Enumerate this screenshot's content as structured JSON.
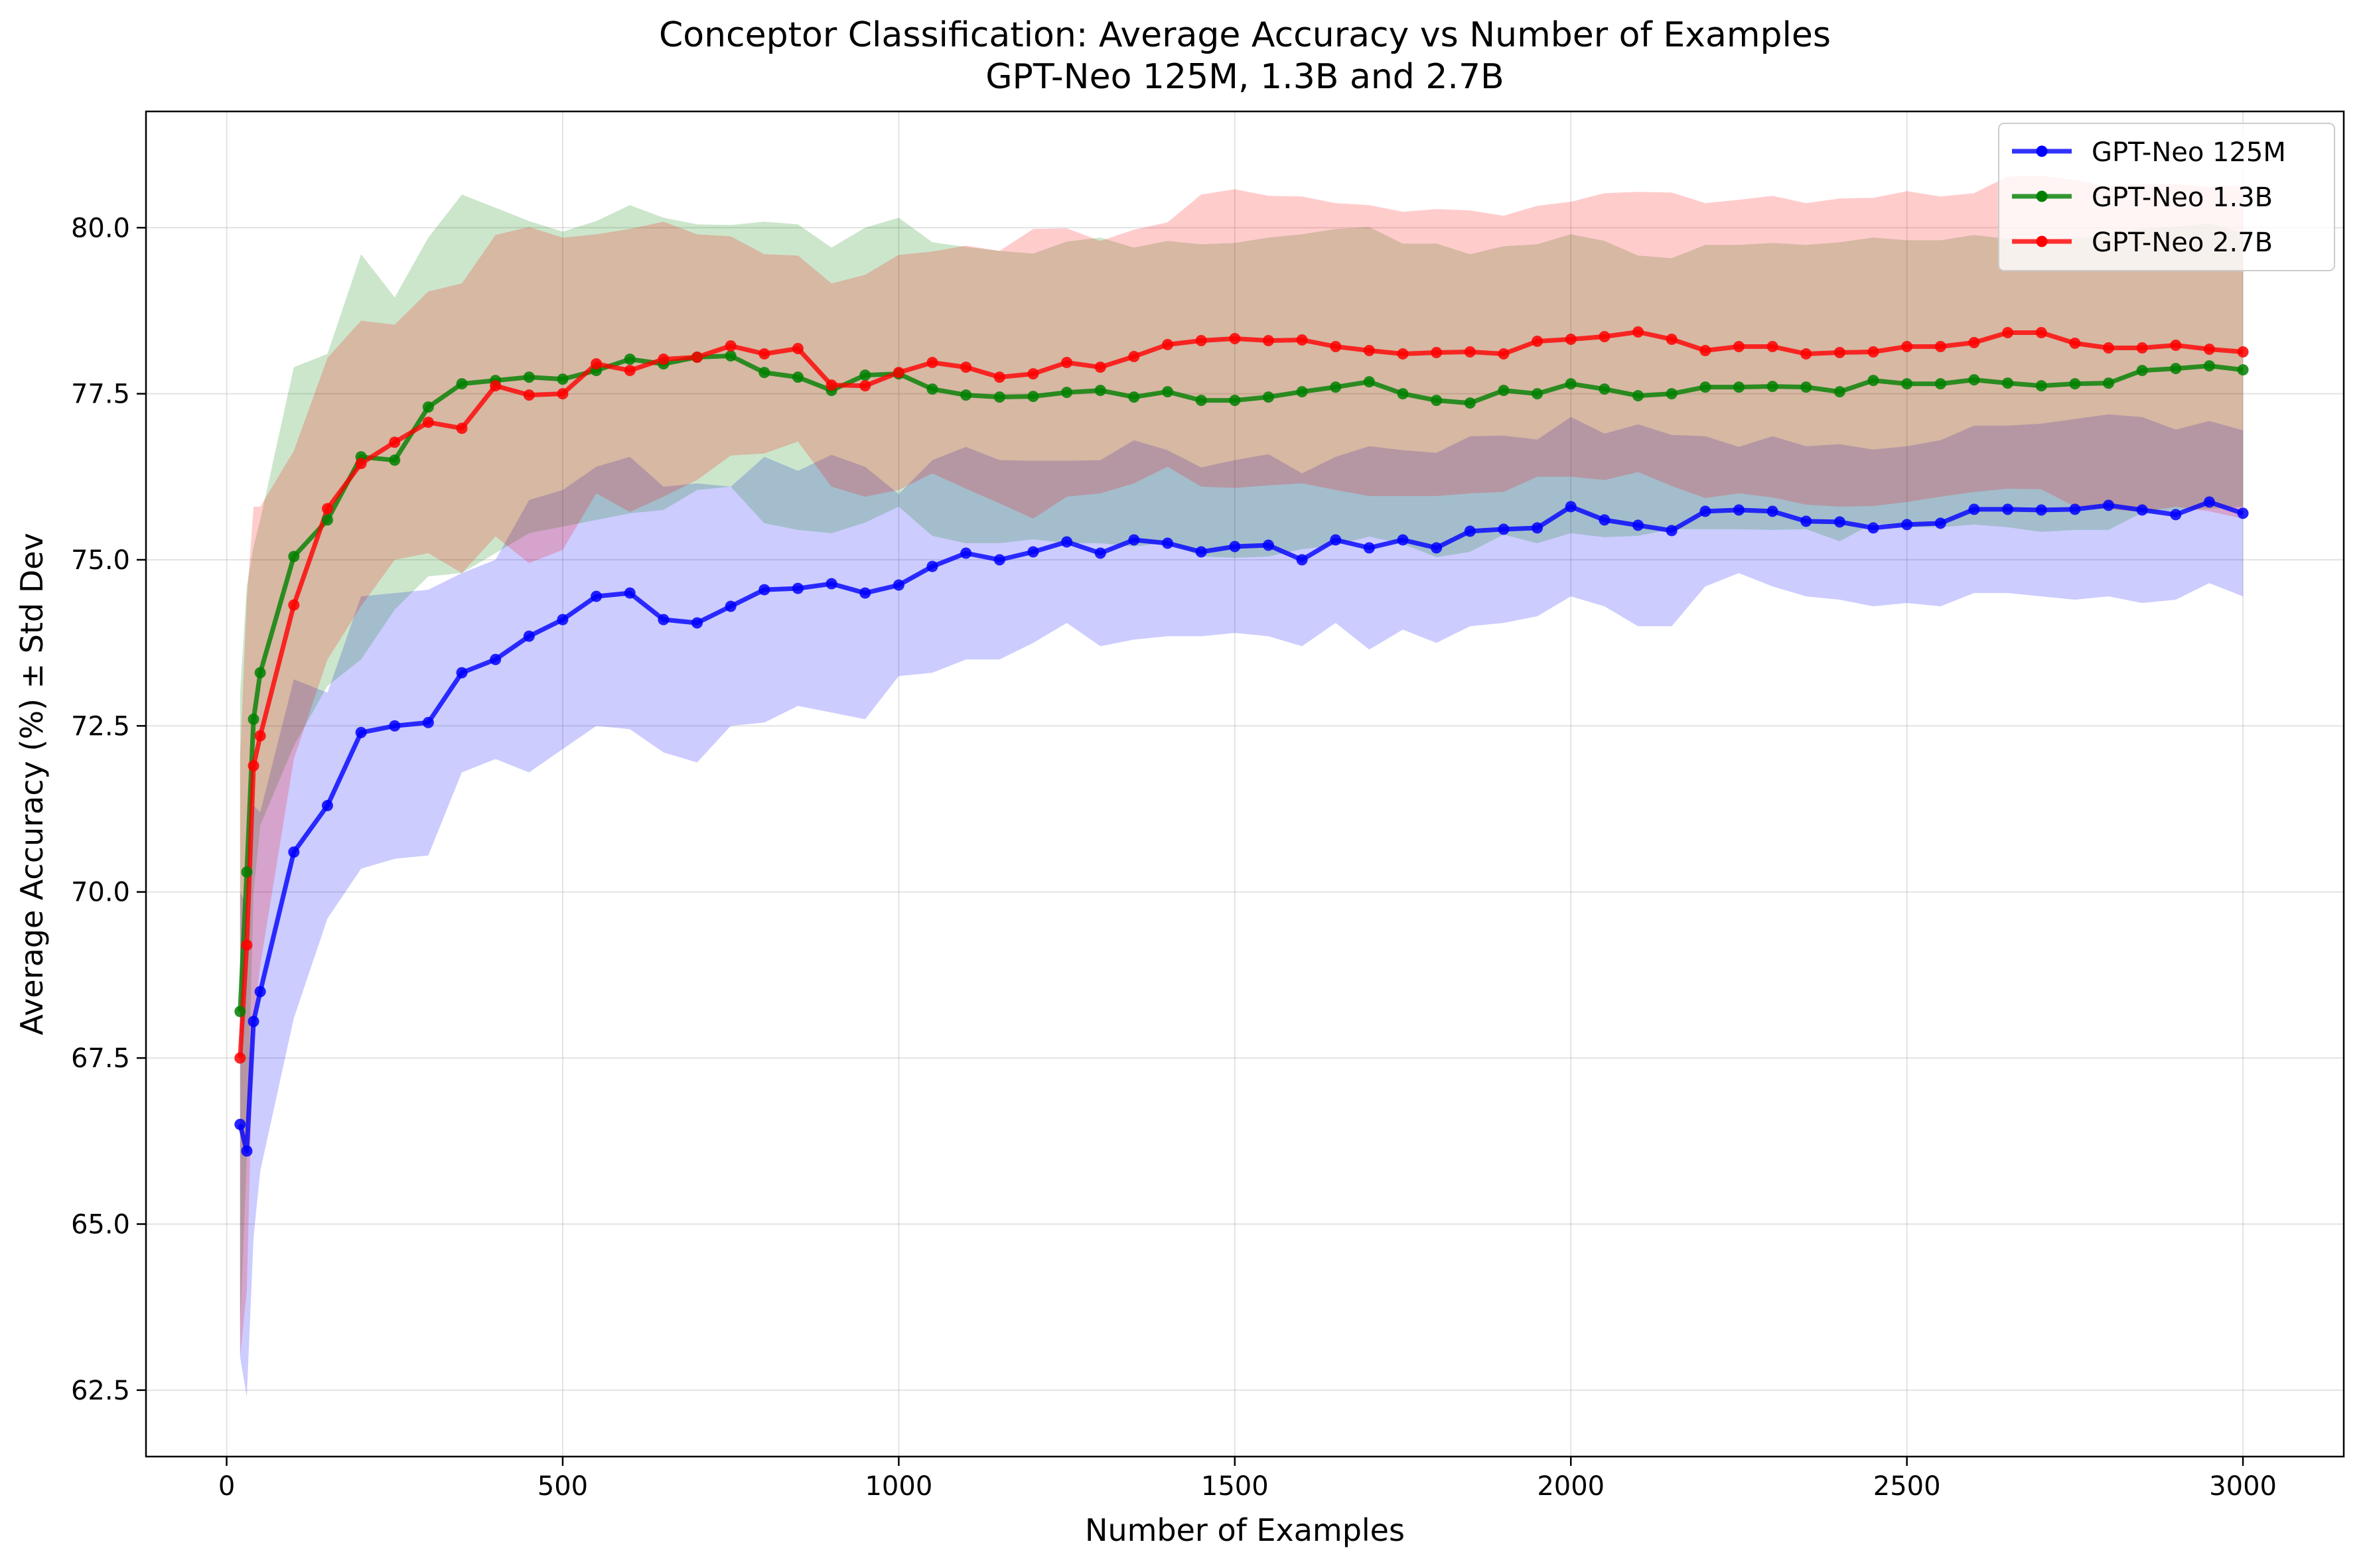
{
  "chart_data": {
    "type": "line",
    "title": "Conceptor Classification: Average Accuracy vs Number of Examples",
    "subtitle": "GPT-Neo 125M, 1.3B and 2.7B",
    "xlabel": "Number of Examples",
    "ylabel": "Average Accuracy (%) ± Std Dev",
    "xlim": [
      -120,
      3150
    ],
    "ylim": [
      61.5,
      81.75
    ],
    "xticks": [
      0,
      500,
      1000,
      1500,
      2000,
      2500,
      3000
    ],
    "xtick_labels": [
      "0",
      "500",
      "1000",
      "1500",
      "2000",
      "2500",
      "3000"
    ],
    "yticks": [
      62.5,
      65.0,
      67.5,
      70.0,
      72.5,
      75.0,
      77.5,
      80.0
    ],
    "ytick_labels": [
      "62.5",
      "65.0",
      "67.5",
      "70.0",
      "72.5",
      "75.0",
      "77.5",
      "80.0"
    ],
    "grid": true,
    "legend_position": "top-right",
    "x": [
      20,
      30,
      40,
      50,
      100,
      150,
      200,
      250,
      300,
      350,
      400,
      450,
      500,
      550,
      600,
      650,
      700,
      750,
      800,
      850,
      900,
      950,
      1000,
      1050,
      1100,
      1150,
      1200,
      1250,
      1300,
      1350,
      1400,
      1450,
      1500,
      1550,
      1600,
      1650,
      1700,
      1750,
      1800,
      1850,
      1900,
      1950,
      2000,
      2050,
      2100,
      2150,
      2200,
      2250,
      2300,
      2350,
      2400,
      2450,
      2500,
      2550,
      2600,
      2650,
      2700,
      2750,
      2800,
      2850,
      2900,
      2950,
      3000
    ],
    "series": [
      {
        "name": "GPT-Neo 125M",
        "color": "#0000ff",
        "fill": "#0000ff",
        "values": [
          66.5,
          66.1,
          68.05,
          68.5,
          70.6,
          71.3,
          72.4,
          72.5,
          72.55,
          73.3,
          73.5,
          73.85,
          74.1,
          74.45,
          74.5,
          74.1,
          74.05,
          74.3,
          74.55,
          74.57,
          74.64,
          74.5,
          74.62,
          74.9,
          75.1,
          75.0,
          75.12,
          75.27,
          75.1,
          75.3,
          75.25,
          75.12,
          75.2,
          75.22,
          75.0,
          75.3,
          75.18,
          75.3,
          75.18,
          75.43,
          75.46,
          75.48,
          75.8,
          75.6,
          75.52,
          75.44,
          75.73,
          75.75,
          75.73,
          75.58,
          75.57,
          75.48,
          75.53,
          75.55,
          75.76,
          75.76,
          75.75,
          75.76,
          75.82,
          75.75,
          75.68,
          75.87,
          75.7
        ],
        "lower": [
          63.0,
          62.4,
          64.8,
          65.8,
          68.1,
          69.6,
          70.35,
          70.5,
          70.55,
          71.8,
          72.0,
          71.8,
          72.15,
          72.5,
          72.45,
          72.1,
          71.95,
          72.5,
          72.55,
          72.8,
          72.7,
          72.6,
          73.25,
          73.3,
          73.5,
          73.5,
          73.75,
          74.05,
          73.7,
          73.8,
          73.85,
          73.85,
          73.9,
          73.85,
          73.7,
          74.05,
          73.65,
          73.95,
          73.75,
          74.0,
          74.05,
          74.15,
          74.45,
          74.3,
          74.0,
          74.0,
          74.6,
          74.8,
          74.6,
          74.45,
          74.4,
          74.3,
          74.35,
          74.3,
          74.5,
          74.5,
          74.45,
          74.4,
          74.45,
          74.35,
          74.4,
          74.65,
          74.45
        ],
        "upper": [
          70.0,
          69.8,
          71.3,
          71.2,
          73.2,
          73.0,
          74.45,
          74.5,
          74.55,
          74.8,
          75.0,
          75.9,
          76.05,
          76.4,
          76.55,
          76.1,
          76.15,
          76.1,
          76.55,
          76.34,
          76.58,
          76.4,
          75.99,
          76.5,
          76.7,
          76.5,
          76.49,
          76.49,
          76.5,
          76.8,
          76.65,
          76.39,
          76.5,
          76.59,
          76.3,
          76.55,
          76.71,
          76.65,
          76.61,
          76.86,
          76.87,
          76.81,
          77.15,
          76.9,
          77.04,
          76.88,
          76.86,
          76.7,
          76.86,
          76.71,
          76.74,
          76.66,
          76.71,
          76.8,
          77.02,
          77.02,
          77.05,
          77.12,
          77.19,
          77.15,
          76.96,
          77.09,
          76.95
        ]
      },
      {
        "name": "GPT-Neo 1.3B",
        "color": "#008000",
        "fill": "#008000",
        "values": [
          68.2,
          70.3,
          72.6,
          73.3,
          75.05,
          75.6,
          76.55,
          76.5,
          77.3,
          77.65,
          77.7,
          77.75,
          77.72,
          77.85,
          78.02,
          77.95,
          78.05,
          78.07,
          77.82,
          77.75,
          77.55,
          77.78,
          77.8,
          77.57,
          77.48,
          77.45,
          77.46,
          77.52,
          77.55,
          77.45,
          77.53,
          77.4,
          77.4,
          77.45,
          77.53,
          77.6,
          77.68,
          77.5,
          77.4,
          77.36,
          77.55,
          77.5,
          77.65,
          77.57,
          77.47,
          77.5,
          77.6,
          77.6,
          77.61,
          77.6,
          77.53,
          77.7,
          77.65,
          77.65,
          77.71,
          77.66,
          77.62,
          77.65,
          77.66,
          77.85,
          77.88,
          77.92,
          77.86
        ],
        "lower": [
          63.4,
          66.0,
          70.0,
          71.0,
          72.2,
          73.1,
          73.5,
          74.25,
          74.75,
          74.8,
          75.1,
          75.4,
          75.5,
          75.6,
          75.7,
          75.75,
          76.05,
          76.1,
          75.55,
          75.45,
          75.4,
          75.56,
          75.8,
          75.36,
          75.25,
          75.25,
          75.31,
          75.25,
          75.25,
          75.2,
          75.26,
          75.05,
          75.03,
          75.05,
          75.16,
          75.22,
          75.35,
          75.24,
          75.04,
          75.12,
          75.38,
          75.25,
          75.4,
          75.34,
          75.36,
          75.46,
          75.46,
          75.46,
          75.45,
          75.46,
          75.28,
          75.55,
          75.49,
          75.49,
          75.53,
          75.49,
          75.42,
          75.45,
          75.45,
          75.71,
          75.75,
          75.77,
          75.8
        ],
        "upper": [
          73.0,
          74.6,
          75.2,
          75.6,
          77.9,
          78.1,
          79.6,
          78.95,
          79.85,
          80.5,
          80.3,
          80.1,
          79.94,
          80.1,
          80.34,
          80.15,
          80.05,
          80.04,
          80.09,
          80.05,
          79.7,
          80.0,
          80.15,
          79.78,
          79.71,
          79.65,
          79.61,
          79.79,
          79.85,
          79.7,
          79.8,
          79.75,
          79.77,
          79.85,
          79.9,
          79.98,
          80.01,
          79.76,
          79.76,
          79.6,
          79.72,
          79.75,
          79.9,
          79.8,
          79.58,
          79.54,
          79.74,
          79.74,
          79.77,
          79.74,
          79.78,
          79.85,
          79.81,
          79.81,
          79.89,
          79.83,
          79.82,
          79.85,
          79.87,
          79.99,
          80.01,
          80.07,
          79.92
        ]
      },
      {
        "name": "GPT-Neo 2.7B",
        "color": "#ff0000",
        "fill": "#ff0000",
        "values": [
          67.5,
          69.2,
          71.9,
          72.35,
          74.32,
          75.77,
          76.45,
          76.77,
          77.07,
          76.98,
          77.62,
          77.48,
          77.5,
          77.95,
          77.85,
          78.02,
          78.05,
          78.22,
          78.1,
          78.18,
          77.63,
          77.62,
          77.82,
          77.97,
          77.9,
          77.75,
          77.8,
          77.97,
          77.9,
          78.06,
          78.24,
          78.3,
          78.33,
          78.3,
          78.31,
          78.21,
          78.15,
          78.1,
          78.12,
          78.13,
          78.1,
          78.29,
          78.32,
          78.36,
          78.43,
          78.32,
          78.15,
          78.21,
          78.21,
          78.1,
          78.12,
          78.13,
          78.21,
          78.21,
          78.27,
          78.42,
          78.42,
          78.26,
          78.19,
          78.19,
          78.23,
          78.17,
          78.13
        ],
        "lower": [
          63.0,
          64.0,
          68.0,
          68.9,
          72.0,
          73.5,
          74.3,
          75.0,
          75.1,
          74.8,
          75.35,
          74.95,
          75.15,
          76.0,
          75.72,
          75.95,
          76.2,
          76.57,
          76.6,
          76.78,
          76.1,
          75.95,
          76.05,
          76.3,
          76.07,
          75.85,
          75.62,
          75.95,
          76.0,
          76.15,
          76.4,
          76.1,
          76.08,
          76.12,
          76.15,
          76.05,
          75.96,
          75.96,
          75.96,
          76.0,
          76.02,
          76.25,
          76.25,
          76.2,
          76.32,
          76.11,
          75.93,
          76.0,
          75.94,
          75.83,
          75.8,
          75.81,
          75.87,
          75.95,
          76.02,
          76.07,
          76.06,
          75.8,
          75.76,
          75.72,
          75.8,
          75.73,
          75.62
        ],
        "upper": [
          72.0,
          74.4,
          75.8,
          75.8,
          76.64,
          78.04,
          78.6,
          78.54,
          79.04,
          79.16,
          79.89,
          80.01,
          79.85,
          79.9,
          79.98,
          80.09,
          79.9,
          79.87,
          79.6,
          79.58,
          79.16,
          79.29,
          79.59,
          79.64,
          79.73,
          79.65,
          79.98,
          79.99,
          79.8,
          79.97,
          80.08,
          80.5,
          80.58,
          80.48,
          80.47,
          80.37,
          80.34,
          80.24,
          80.28,
          80.26,
          80.18,
          80.33,
          80.39,
          80.52,
          80.54,
          80.53,
          80.37,
          80.42,
          80.48,
          80.37,
          80.44,
          80.45,
          80.55,
          80.47,
          80.52,
          80.77,
          80.78,
          80.72,
          80.62,
          80.66,
          80.66,
          80.61,
          80.64
        ]
      }
    ]
  }
}
